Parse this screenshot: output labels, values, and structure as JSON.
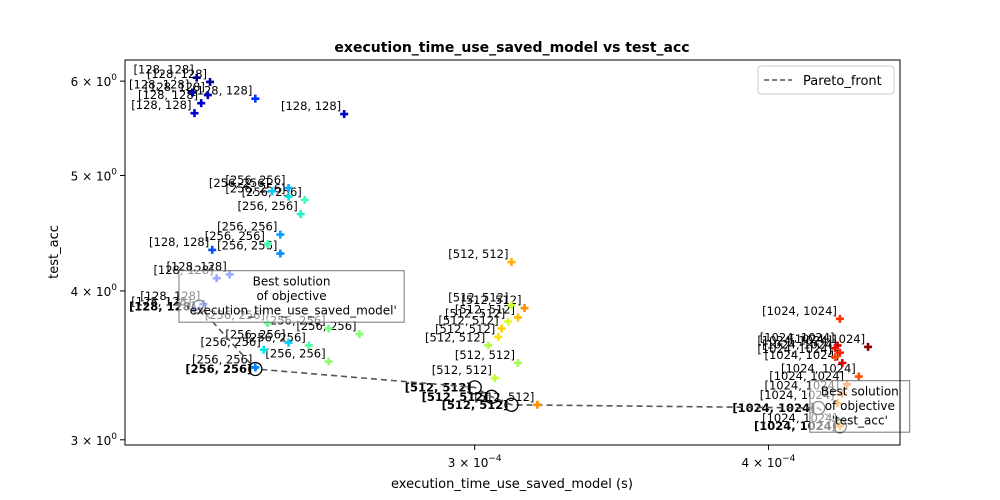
{
  "chart_data": {
    "type": "scatter",
    "title": "execution_time_use_saved_model vs test_acc",
    "xlabel": "execution_time_use_saved_model (s)",
    "ylabel": "test_acc",
    "xscale": "log",
    "yscale": "log",
    "xlim": [
      0.000213,
      0.000455
    ],
    "ylim": [
      2.97,
      6.25
    ],
    "x_ticks": [
      {
        "value": 0.0003,
        "label": "3 × 10",
        "exp": "−4"
      },
      {
        "value": 0.0004,
        "label": "4 × 10",
        "exp": "−4"
      }
    ],
    "y_ticks": [
      {
        "value": 3,
        "label": "3 × 10",
        "exp": "0"
      },
      {
        "value": 4,
        "label": "4 × 10",
        "exp": "0"
      },
      {
        "value": 5,
        "label": "5 × 10",
        "exp": "0"
      },
      {
        "value": 6,
        "label": "6 × 10",
        "exp": "0"
      }
    ],
    "grid": false,
    "legend": {
      "position": "top-right",
      "entries": [
        {
          "name": "Pareto_front",
          "style": "dashed",
          "color": "#555555"
        }
      ]
    },
    "colors": {
      "pareto": "#555555",
      "best_marker": "#000000"
    },
    "points": [
      {
        "x": 0.0002285,
        "y": 6.04,
        "label": "[128, 128]",
        "color": "#00008b"
      },
      {
        "x": 0.0002315,
        "y": 5.99,
        "label": "[128, 128]",
        "color": "#000096"
      },
      {
        "x": 0.0002275,
        "y": 5.87,
        "label": "[128, 128]",
        "color": "#0000a8"
      },
      {
        "x": 0.000231,
        "y": 5.84,
        "label": "[128, 128]",
        "color": "#0000bb"
      },
      {
        "x": 0.0002295,
        "y": 5.75,
        "label": "[128, 128]",
        "color": "#0000cd"
      },
      {
        "x": 0.000228,
        "y": 5.64,
        "label": "[128, 128]",
        "color": "#0000d6"
      },
      {
        "x": 0.000242,
        "y": 5.8,
        "label": "[128, 128]",
        "color": "#0030ff"
      },
      {
        "x": 0.000264,
        "y": 5.63,
        "label": "[128, 128]",
        "color": "#0000cc"
      },
      {
        "x": 0.000232,
        "y": 4.33,
        "label": "[128, 128]",
        "color": "#0050ff"
      },
      {
        "x": 0.000236,
        "y": 4.13,
        "label": "[128, 128]",
        "color": "#1f40ff"
      },
      {
        "x": 0.000233,
        "y": 4.1,
        "label": "[128, 128]",
        "color": "#2840ff"
      },
      {
        "x": 0.00023,
        "y": 3.9,
        "label": "[128, 128]",
        "color": "#3050ff"
      },
      {
        "x": 0.000228,
        "y": 3.86,
        "label": "[128, 128]",
        "color": "#3a5aff"
      },
      {
        "x": 0.00025,
        "y": 4.88,
        "label": "[256, 256]",
        "color": "#00b0ff"
      },
      {
        "x": 0.000246,
        "y": 4.85,
        "label": "[256, 256]",
        "color": "#00c8ff"
      },
      {
        "x": 0.00025,
        "y": 4.8,
        "label": "[256, 256]",
        "color": "#00e0e0"
      },
      {
        "x": 0.000254,
        "y": 4.77,
        "label": "[256, 256]",
        "color": "#40ffb8"
      },
      {
        "x": 0.000253,
        "y": 4.64,
        "label": "[256, 256]",
        "color": "#20f0d0"
      },
      {
        "x": 0.000248,
        "y": 4.46,
        "label": "[256, 256]",
        "color": "#00a0ff"
      },
      {
        "x": 0.000245,
        "y": 4.38,
        "label": "[256, 256]",
        "color": "#40ffb0"
      },
      {
        "x": 0.000248,
        "y": 4.3,
        "label": "[256, 256]",
        "color": "#0090ff"
      },
      {
        "x": 0.000245,
        "y": 3.76,
        "label": "[256, 256]",
        "color": "#60ff90"
      },
      {
        "x": 0.00026,
        "y": 3.72,
        "label": "[256, 256]",
        "color": "#70ff80"
      },
      {
        "x": 0.000268,
        "y": 3.68,
        "label": "[256, 256]",
        "color": "#80ff70"
      },
      {
        "x": 0.00025,
        "y": 3.62,
        "label": "[256, 256]",
        "color": "#00d0ff"
      },
      {
        "x": 0.000255,
        "y": 3.6,
        "label": "[256, 256]",
        "color": "#50ffa0"
      },
      {
        "x": 0.000244,
        "y": 3.57,
        "label": "[256, 256]",
        "color": "#00e8e8"
      },
      {
        "x": 0.00026,
        "y": 3.49,
        "label": "[256, 256]",
        "color": "#90ff60"
      },
      {
        "x": 0.000242,
        "y": 3.45,
        "label": "[256, 256]",
        "color": "#0080ff"
      },
      {
        "x": 0.000311,
        "y": 4.23,
        "label": "[512, 512]",
        "color": "#ffb000"
      },
      {
        "x": 0.000311,
        "y": 3.89,
        "label": "[512, 512]",
        "color": "#c8ff30"
      },
      {
        "x": 0.000315,
        "y": 3.87,
        "label": "[512, 512]",
        "color": "#ff9000"
      },
      {
        "x": 0.000313,
        "y": 3.8,
        "label": "[512, 512]",
        "color": "#ffc000"
      },
      {
        "x": 0.00031,
        "y": 3.77,
        "label": "[512, 512]",
        "color": "#e0ff20"
      },
      {
        "x": 0.000308,
        "y": 3.72,
        "label": "[512, 512]",
        "color": "#ffd000"
      },
      {
        "x": 0.000307,
        "y": 3.66,
        "label": "[512, 512]",
        "color": "#ffe000"
      },
      {
        "x": 0.000304,
        "y": 3.6,
        "label": "[512, 512]",
        "color": "#b0ff40"
      },
      {
        "x": 0.000313,
        "y": 3.48,
        "label": "[512, 512]",
        "color": "#a0ff50"
      },
      {
        "x": 0.000306,
        "y": 3.38,
        "label": "[512, 512]",
        "color": "#c0ff30"
      },
      {
        "x": 0.000319,
        "y": 3.21,
        "label": "[512, 512]",
        "color": "#ff8c00"
      },
      {
        "x": 0.000429,
        "y": 3.79,
        "label": "[1024, 1024]",
        "color": "#ff3000"
      },
      {
        "x": 0.000428,
        "y": 3.6,
        "label": "[1024, 1024]",
        "color": "#d00000"
      },
      {
        "x": 0.000427,
        "y": 3.58,
        "label": "[1024, 1024]",
        "color": "#ee1000"
      },
      {
        "x": 0.000429,
        "y": 3.55,
        "label": "[1024, 1024]",
        "color": "#ff2000"
      },
      {
        "x": 0.000427,
        "y": 3.52,
        "label": "[1024, 1024]",
        "color": "#ff4000"
      },
      {
        "x": 0.00043,
        "y": 3.48,
        "label": "[1024, 1024]",
        "color": "#e00000"
      },
      {
        "x": 0.000441,
        "y": 3.59,
        "label": "[1024, 1024]",
        "color": "#8b0000"
      },
      {
        "x": 0.000437,
        "y": 3.39,
        "label": "[1024, 1024]",
        "color": "#ff5000"
      },
      {
        "x": 0.000432,
        "y": 3.34,
        "label": "[1024, 1024]",
        "color": "#ff6000"
      },
      {
        "x": 0.00043,
        "y": 3.28,
        "label": "[1024, 1024]",
        "color": "#ff7000"
      },
      {
        "x": 0.000428,
        "y": 3.22,
        "label": "[1024, 1024]",
        "color": "#ff8000"
      },
      {
        "x": 0.000429,
        "y": 3.08,
        "label": "[1024, 1024]",
        "color": "#ff9000"
      }
    ],
    "pareto_front": [
      {
        "x": 0.000229,
        "y": 3.88,
        "label": "[128, 128]",
        "bold": true
      },
      {
        "x": 0.000242,
        "y": 3.44,
        "label": "[256, 256]",
        "bold": true
      },
      {
        "x": 0.0003,
        "y": 3.32,
        "label": "[512, 512]",
        "bold": true
      },
      {
        "x": 0.000305,
        "y": 3.26,
        "label": "[512, 512]",
        "bold": true
      },
      {
        "x": 0.000311,
        "y": 3.21,
        "label": "[512, 512]",
        "bold": true
      },
      {
        "x": 0.00042,
        "y": 3.19,
        "label": "[1024, 1024]",
        "bold": true
      },
      {
        "x": 0.000429,
        "y": 3.08,
        "label": "[1024, 1024]",
        "bold": true
      }
    ],
    "annotations": [
      {
        "anchor": {
          "x": 0.000229,
          "y": 3.88
        },
        "lines": [
          "Best solution",
          "of objective",
          "'execution_time_use_saved_model'"
        ],
        "place": "right-of-anchor"
      },
      {
        "anchor": {
          "x": 0.000429,
          "y": 3.08
        },
        "lines": [
          "Best solution",
          "of objective",
          "'test_acc'"
        ],
        "place": "above-left-of-anchor"
      }
    ]
  }
}
